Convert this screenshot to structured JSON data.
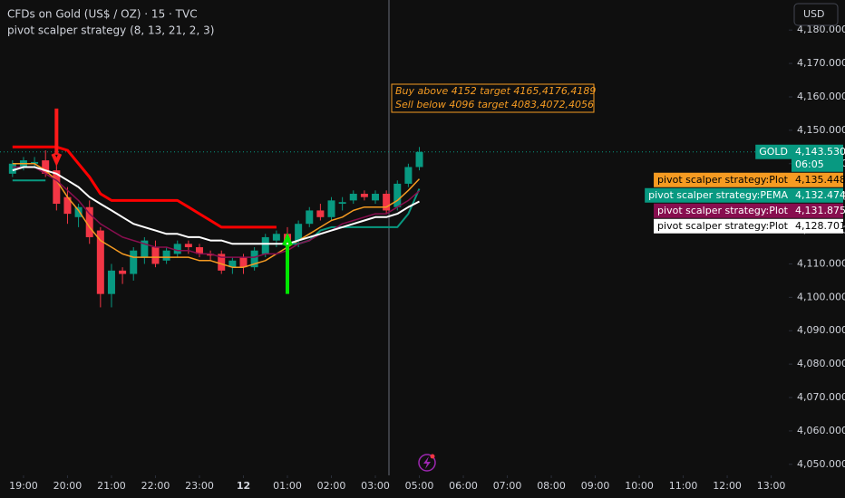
{
  "chart_data": {
    "type": "candlestick",
    "title": "CFDs on Gold (US$ / OZ) · 15 · TVC",
    "subtitle": "pivot scalper strategy (8, 13, 21, 2, 3)",
    "currency": "USD",
    "up_color": "#089981",
    "down_color": "#f23645",
    "x": [
      -1,
      0,
      1,
      2,
      3,
      4,
      5,
      6,
      7,
      8,
      9,
      10,
      11,
      12,
      13,
      14,
      15,
      16,
      17,
      18,
      19,
      20,
      21,
      22,
      23,
      24,
      25,
      26,
      27,
      28,
      29,
      30,
      31,
      32,
      33,
      34,
      35,
      36
    ],
    "ohlc": [
      [
        4137,
        4141,
        4136,
        4140
      ],
      [
        4139,
        4142,
        4138,
        4141
      ],
      [
        4140,
        4142,
        4139,
        4140.5
      ],
      [
        4141,
        4144,
        4136,
        4137
      ],
      [
        4138,
        4141,
        4126,
        4128
      ],
      [
        4130,
        4133,
        4122,
        4125
      ],
      [
        4124,
        4128,
        4121,
        4127
      ],
      [
        4127,
        4129,
        4116,
        4118
      ],
      [
        4120,
        4121,
        4097,
        4101
      ],
      [
        4101,
        4110,
        4097,
        4108
      ],
      [
        4108,
        4109,
        4104,
        4107
      ],
      [
        4107,
        4115,
        4105,
        4114
      ],
      [
        4112,
        4118,
        4110,
        4117
      ],
      [
        4115,
        4117,
        4109,
        4110
      ],
      [
        4111,
        4115,
        4110,
        4114
      ],
      [
        4113,
        4117,
        4112,
        4116
      ],
      [
        4116,
        4117,
        4113,
        4115
      ],
      [
        4115,
        4116,
        4112,
        4113
      ],
      [
        4113,
        4114,
        4111,
        4112.5
      ],
      [
        4113,
        4114,
        4107,
        4108
      ],
      [
        4109,
        4112,
        4107,
        4111
      ],
      [
        4112,
        4113,
        4107,
        4109
      ],
      [
        4109,
        4115,
        4108,
        4114
      ],
      [
        4113,
        4119,
        4112,
        4118
      ],
      [
        4117,
        4120,
        4115,
        4119
      ],
      [
        4119,
        4121,
        4113,
        4116
      ],
      [
        4117,
        4123,
        4115,
        4122
      ],
      [
        4122,
        4127,
        4121,
        4126
      ],
      [
        4126,
        4128,
        4123,
        4124
      ],
      [
        4124,
        4130,
        4123,
        4129
      ],
      [
        4128,
        4130,
        4126,
        4128.5
      ],
      [
        4129,
        4132,
        4128,
        4131
      ],
      [
        4131,
        4132,
        4129,
        4130
      ],
      [
        4129,
        4132,
        4128,
        4131
      ],
      [
        4131,
        4132,
        4125,
        4126
      ],
      [
        4127,
        4135,
        4126,
        4134
      ],
      [
        4134,
        4140,
        4133,
        4139
      ],
      [
        4139,
        4145,
        4138,
        4143.53
      ]
    ],
    "series": [
      {
        "color": "#ff0000",
        "width": 3,
        "values": [
          4145,
          4145,
          4145,
          4145,
          4145,
          4144,
          4140,
          4136,
          4131,
          4129,
          4129,
          4129,
          4129,
          4129,
          4129,
          4129,
          4127,
          4125,
          4123,
          4121,
          4121,
          4121,
          4121,
          4121,
          4121,
          null,
          null,
          null,
          null,
          null,
          null,
          null,
          null,
          null,
          null,
          null,
          null,
          null
        ]
      },
      {
        "name": "pivot scalper strategy:Plot",
        "color": "#f59b22",
        "width": 1.5,
        "last_value_label": "4,135.448",
        "values": [
          4140,
          4140,
          4140,
          4138,
          4135,
          4130,
          4126,
          4121,
          4117,
          4115,
          4113,
          4112,
          4112,
          4112,
          4112,
          4112,
          4112,
          4111,
          4111,
          4110,
          4109,
          4109,
          4110,
          4111,
          4113,
          4115,
          4117,
          4119,
          4121,
          4123,
          4124,
          4126,
          4127,
          4127,
          4127,
          4129,
          4132,
          4135.448
        ]
      },
      {
        "name": "pivot scalper strategy:PEMA",
        "color": "#089981",
        "width": 2,
        "last_value_label": "4,132.474",
        "values": [
          4135,
          4135,
          4135,
          4135,
          null,
          null,
          null,
          null,
          null,
          null,
          null,
          null,
          null,
          null,
          null,
          null,
          null,
          null,
          null,
          null,
          null,
          null,
          null,
          null,
          null,
          4116,
          4116,
          4117,
          4120,
          4121,
          4121,
          4121,
          4121,
          4121,
          4121,
          4121,
          4125,
          4132.474
        ]
      },
      {
        "name": "pivot scalper strategy:Plot",
        "color": "#880e4f",
        "width": 1.5,
        "last_value_label": "4,131.875",
        "values": [
          4139,
          4139,
          4139,
          4137,
          4135,
          4132,
          4129,
          4125,
          4122,
          4120,
          4118,
          4117,
          4116,
          4115,
          4115,
          4114,
          4114,
          4113,
          4113,
          4112,
          4112,
          4112,
          4112,
          4113,
          4113,
          4114,
          4116,
          4117,
          4119,
          4120,
          4122,
          4123,
          4124,
          4125,
          4125,
          4127,
          4129,
          4131.875
        ]
      },
      {
        "name": "pivot scalper strategy:Plot",
        "color": "#ffffff",
        "width": 2,
        "last_value_label": "4,128.701",
        "values": [
          4138,
          4139,
          4139,
          4138,
          4137,
          4135,
          4133,
          4130,
          4128,
          4126,
          4124,
          4122,
          4121,
          4120,
          4119,
          4119,
          4118,
          4118,
          4117,
          4117,
          4116,
          4116,
          4116,
          4116,
          4116,
          4116,
          4117,
          4118,
          4119,
          4120,
          4121,
          4122,
          4123,
          4124,
          4124,
          4125,
          4127,
          4128.701
        ]
      }
    ],
    "signals": [
      {
        "x": 3,
        "from": 4156.5,
        "to": 4140.5,
        "color": "#ff1a1a"
      },
      {
        "x": 24,
        "from": 4101,
        "to": 4118,
        "color": "#00e600"
      }
    ],
    "price_label": {
      "name": "GOLD",
      "value": 4143.53,
      "value_label": "4,143.530",
      "countdown": "06:05",
      "color": "#089981"
    },
    "annotation": {
      "lines": [
        "Buy above 4152 target 4165,4176,4189",
        "Sell below 4096 target 4083,4072,4056"
      ],
      "color": "#f59b22"
    },
    "xlim": [
      -2.14,
      69.6
    ],
    "ylim": [
      4046.7,
      4189.0
    ],
    "xticks": [
      {
        "value": 0,
        "label": "19:00"
      },
      {
        "value": 4,
        "label": "20:00"
      },
      {
        "value": 8,
        "label": "21:00"
      },
      {
        "value": 12,
        "label": "22:00"
      },
      {
        "value": 16,
        "label": "23:00"
      },
      {
        "value": 20,
        "label": "12"
      },
      {
        "value": 24,
        "label": "01:00"
      },
      {
        "value": 28,
        "label": "02:00"
      },
      {
        "value": 32,
        "label": "03:00"
      },
      {
        "value": 36,
        "label": "05:00"
      },
      {
        "value": 40,
        "label": "06:00"
      },
      {
        "value": 44,
        "label": "07:00"
      },
      {
        "value": 48,
        "label": "08:00"
      },
      {
        "value": 52,
        "label": "09:00"
      },
      {
        "value": 56,
        "label": "10:00"
      },
      {
        "value": 60,
        "label": "11:00"
      },
      {
        "value": 64,
        "label": "12:00"
      },
      {
        "value": 68,
        "label": "13:00"
      }
    ],
    "yticks": [
      {
        "value": 4050,
        "label": "4,050.000"
      },
      {
        "value": 4060,
        "label": "4,060.000"
      },
      {
        "value": 4070,
        "label": "4,070.000"
      },
      {
        "value": 4080,
        "label": "4,080.000"
      },
      {
        "value": 4090,
        "label": "4,090.000"
      },
      {
        "value": 4100,
        "label": "4,100.000"
      },
      {
        "value": 4110,
        "label": "4,110.000"
      },
      {
        "value": 4120,
        "label": "4,120.000"
      },
      {
        "value": 4130,
        "label": "4,130.000"
      },
      {
        "value": 4140,
        "label": "4,140.000"
      },
      {
        "value": 4150,
        "label": "4,150.000"
      },
      {
        "value": 4160,
        "label": "4,160.000"
      },
      {
        "value": 4170,
        "label": "4,170.000"
      },
      {
        "value": 4180,
        "label": "4,180.000"
      }
    ],
    "grid": false
  }
}
